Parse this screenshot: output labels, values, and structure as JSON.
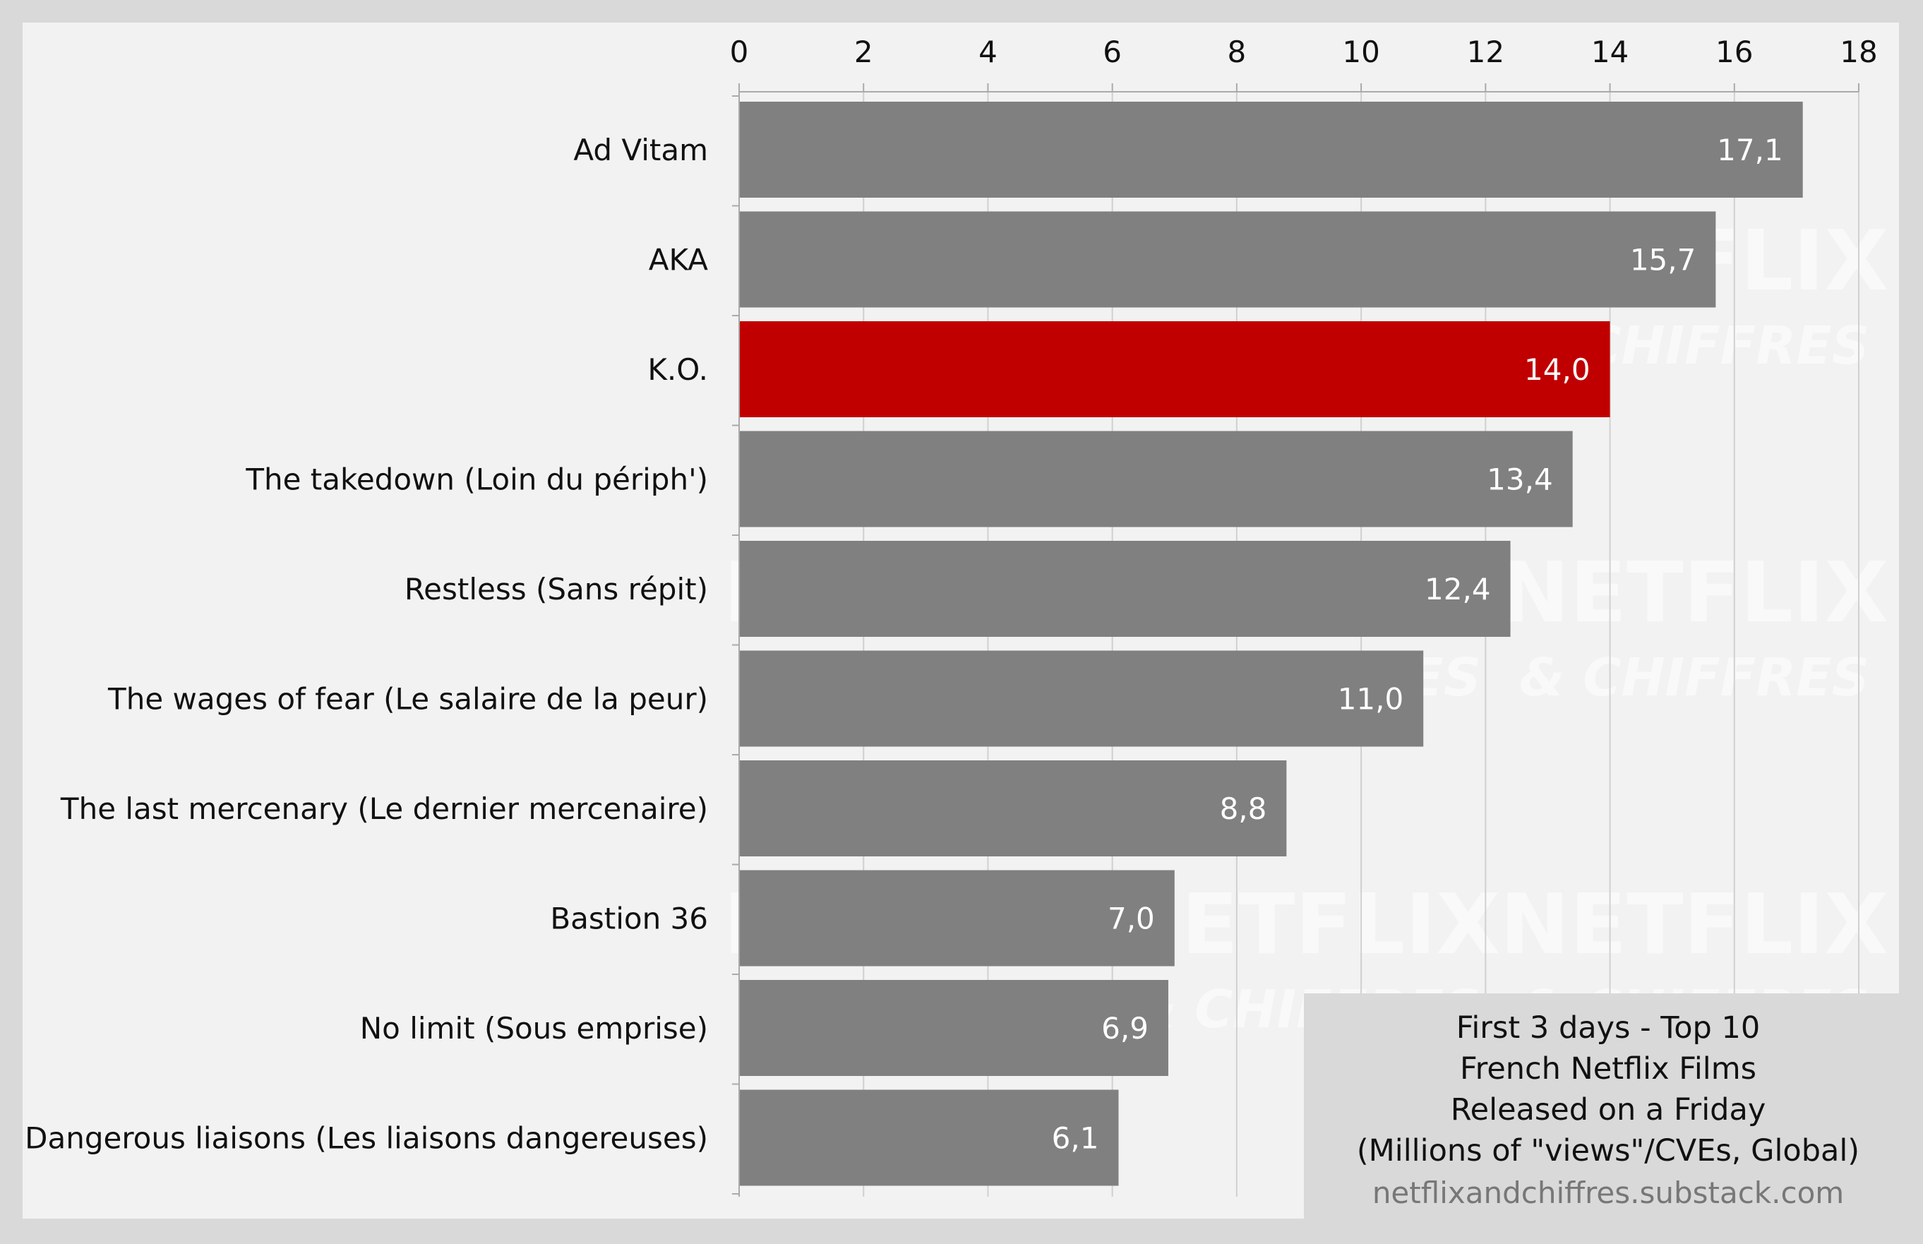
{
  "chart_data": {
    "type": "bar",
    "orientation": "horizontal",
    "categories": [
      "Ad Vitam",
      "AKA",
      "K.O.",
      "The takedown (Loin du périph')",
      "Restless (Sans répit)",
      "The wages of fear (Le salaire de la peur)",
      "The last mercenary (Le dernier mercenaire)",
      "Bastion 36",
      "No limit (Sous emprise)",
      "Dangerous liaisons (Les liaisons dangereuses)"
    ],
    "values": [
      17.1,
      15.7,
      14.0,
      13.4,
      12.4,
      11.0,
      8.8,
      7.0,
      6.9,
      6.1
    ],
    "value_labels": [
      "17,1",
      "15,7",
      "14,0",
      "13,4",
      "12,4",
      "11,0",
      "8,8",
      "7,0",
      "6,9",
      "6,1"
    ],
    "highlight_index": 2,
    "xlim": [
      0,
      18
    ],
    "xticks": [
      "0",
      "2",
      "4",
      "6",
      "8",
      "10",
      "12",
      "14",
      "16",
      "18"
    ],
    "x_axis_position": "top",
    "grid": true,
    "colors": {
      "bar": "#808080",
      "highlight": "#c00000",
      "plot_background": "#f2f2f2",
      "page_background": "#d9d9d9",
      "grid": "#d0d0d0",
      "value_label": "#ffffff",
      "text": "#111111",
      "watermark": "#ffffff",
      "source_text": "#777777"
    },
    "info_box": {
      "lines": [
        "First 3 days - Top 10",
        "French Netflix Films",
        "Released on a Friday",
        "(Millions of \"views\"/CVEs, Global)"
      ],
      "source": "netflixandchiffres.substack.com",
      "placement": "bottom-right"
    },
    "watermark": {
      "line1": "NETFLIX",
      "line2": "& CHIFFRES"
    }
  }
}
